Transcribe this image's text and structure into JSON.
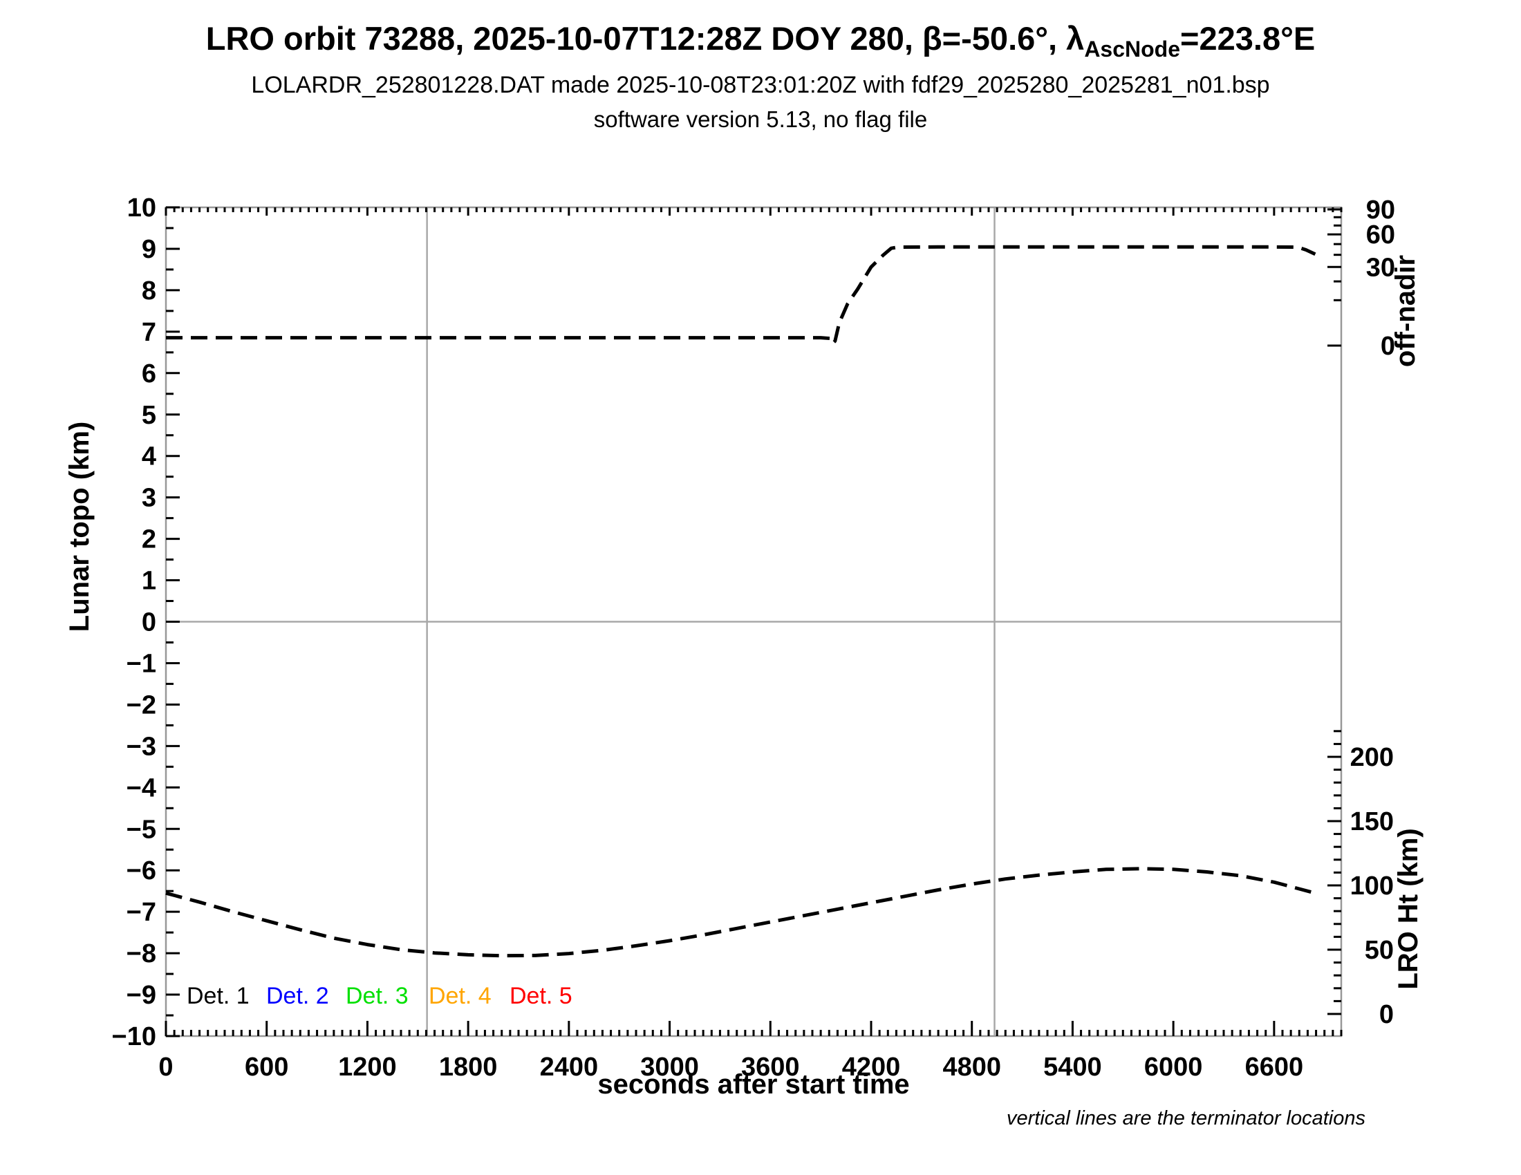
{
  "header": {
    "title_prefix": "LRO orbit 73288, 2025-10-07T12:28Z DOY 280, β=-50.6°, λ",
    "title_subscript": "AscNode",
    "title_suffix": "=223.8°E",
    "subtitle": "LOLARDR_252801228.DAT made 2025-10-08T23:01:20Z with fdf29_2025280_2025281_n01.bsp",
    "subtitle2": "software version 5.13, no flag file"
  },
  "chart_data": {
    "type": "line",
    "x_axis": {
      "label": "seconds after start time",
      "min": 0,
      "max": 7000,
      "major_ticks": [
        0,
        600,
        1200,
        1800,
        2400,
        3000,
        3600,
        4200,
        4800,
        5400,
        6000,
        6600
      ],
      "minor_step": 50
    },
    "y_left_axis": {
      "label": "Lunar topo (km)",
      "min": -10,
      "max": 10,
      "major_step": 1,
      "minor_step": 0.5
    },
    "y_right_top_axis": {
      "label": "off-nadir",
      "units": "degrees",
      "scale": "sqrt",
      "major_ticks": [
        90,
        60,
        30,
        0
      ],
      "minor_ticks": [
        80,
        70,
        50,
        40,
        20,
        10
      ]
    },
    "y_right_bottom_axis": {
      "label": "LRO Ht (km)",
      "major_ticks": [
        200,
        150,
        100,
        50,
        0
      ],
      "minor_step": 10,
      "shown_range": [
        0,
        220
      ]
    },
    "terminator_lines_s": [
      1555,
      4935
    ],
    "horizontal_zero_line_topo": 0,
    "series": [
      {
        "name": "off-nadir angle",
        "axis": "off",
        "units": "deg",
        "color": "#000000",
        "style": "dashed",
        "points": [
          [
            0,
            0.3
          ],
          [
            600,
            0.3
          ],
          [
            1200,
            0.3
          ],
          [
            1800,
            0.3
          ],
          [
            2400,
            0.3
          ],
          [
            3000,
            0.3
          ],
          [
            3600,
            0.3
          ],
          [
            3900,
            0.3
          ],
          [
            3955,
            0.25
          ],
          [
            3970,
            0.02
          ],
          [
            3985,
            0.1
          ],
          [
            4010,
            2.5
          ],
          [
            4060,
            8.5
          ],
          [
            4120,
            15.5
          ],
          [
            4200,
            30
          ],
          [
            4270,
            39.5
          ],
          [
            4320,
            46
          ],
          [
            4360,
            47
          ],
          [
            4600,
            47.2
          ],
          [
            5000,
            47.2
          ],
          [
            5400,
            47.2
          ],
          [
            5800,
            47.2
          ],
          [
            6200,
            47.2
          ],
          [
            6600,
            47.2
          ],
          [
            6740,
            47
          ],
          [
            6790,
            44.5
          ],
          [
            6845,
            40.5
          ]
        ]
      },
      {
        "name": "LRO height",
        "axis": "ht",
        "units": "km",
        "color": "#000000",
        "style": "dashed",
        "points": [
          [
            0,
            94
          ],
          [
            200,
            87
          ],
          [
            400,
            79.5
          ],
          [
            600,
            72.5
          ],
          [
            800,
            65.5
          ],
          [
            1000,
            59
          ],
          [
            1200,
            54
          ],
          [
            1400,
            50
          ],
          [
            1600,
            47.5
          ],
          [
            1800,
            46
          ],
          [
            2000,
            45.3
          ],
          [
            2200,
            45.5
          ],
          [
            2400,
            47
          ],
          [
            2600,
            49.5
          ],
          [
            2800,
            53
          ],
          [
            3000,
            57
          ],
          [
            3200,
            61.5
          ],
          [
            3400,
            66.5
          ],
          [
            3600,
            71.5
          ],
          [
            3800,
            76.5
          ],
          [
            4000,
            81.5
          ],
          [
            4200,
            86.5
          ],
          [
            4400,
            91.5
          ],
          [
            4600,
            96.5
          ],
          [
            4800,
            101
          ],
          [
            5000,
            105
          ],
          [
            5200,
            108
          ],
          [
            5400,
            110.5
          ],
          [
            5600,
            112.5
          ],
          [
            5800,
            113
          ],
          [
            6000,
            112.5
          ],
          [
            6200,
            110.5
          ],
          [
            6400,
            107.5
          ],
          [
            6600,
            102.5
          ],
          [
            6845,
            94
          ]
        ]
      }
    ],
    "legend": [
      {
        "label": "Det. 1",
        "color": "#000000"
      },
      {
        "label": "Det. 2",
        "color": "#0000ff"
      },
      {
        "label": "Det. 3",
        "color": "#00e000"
      },
      {
        "label": "Det. 4",
        "color": "#ffa500"
      },
      {
        "label": "Det. 5",
        "color": "#ff0000"
      }
    ],
    "footnote": "vertical lines are the terminator locations"
  }
}
